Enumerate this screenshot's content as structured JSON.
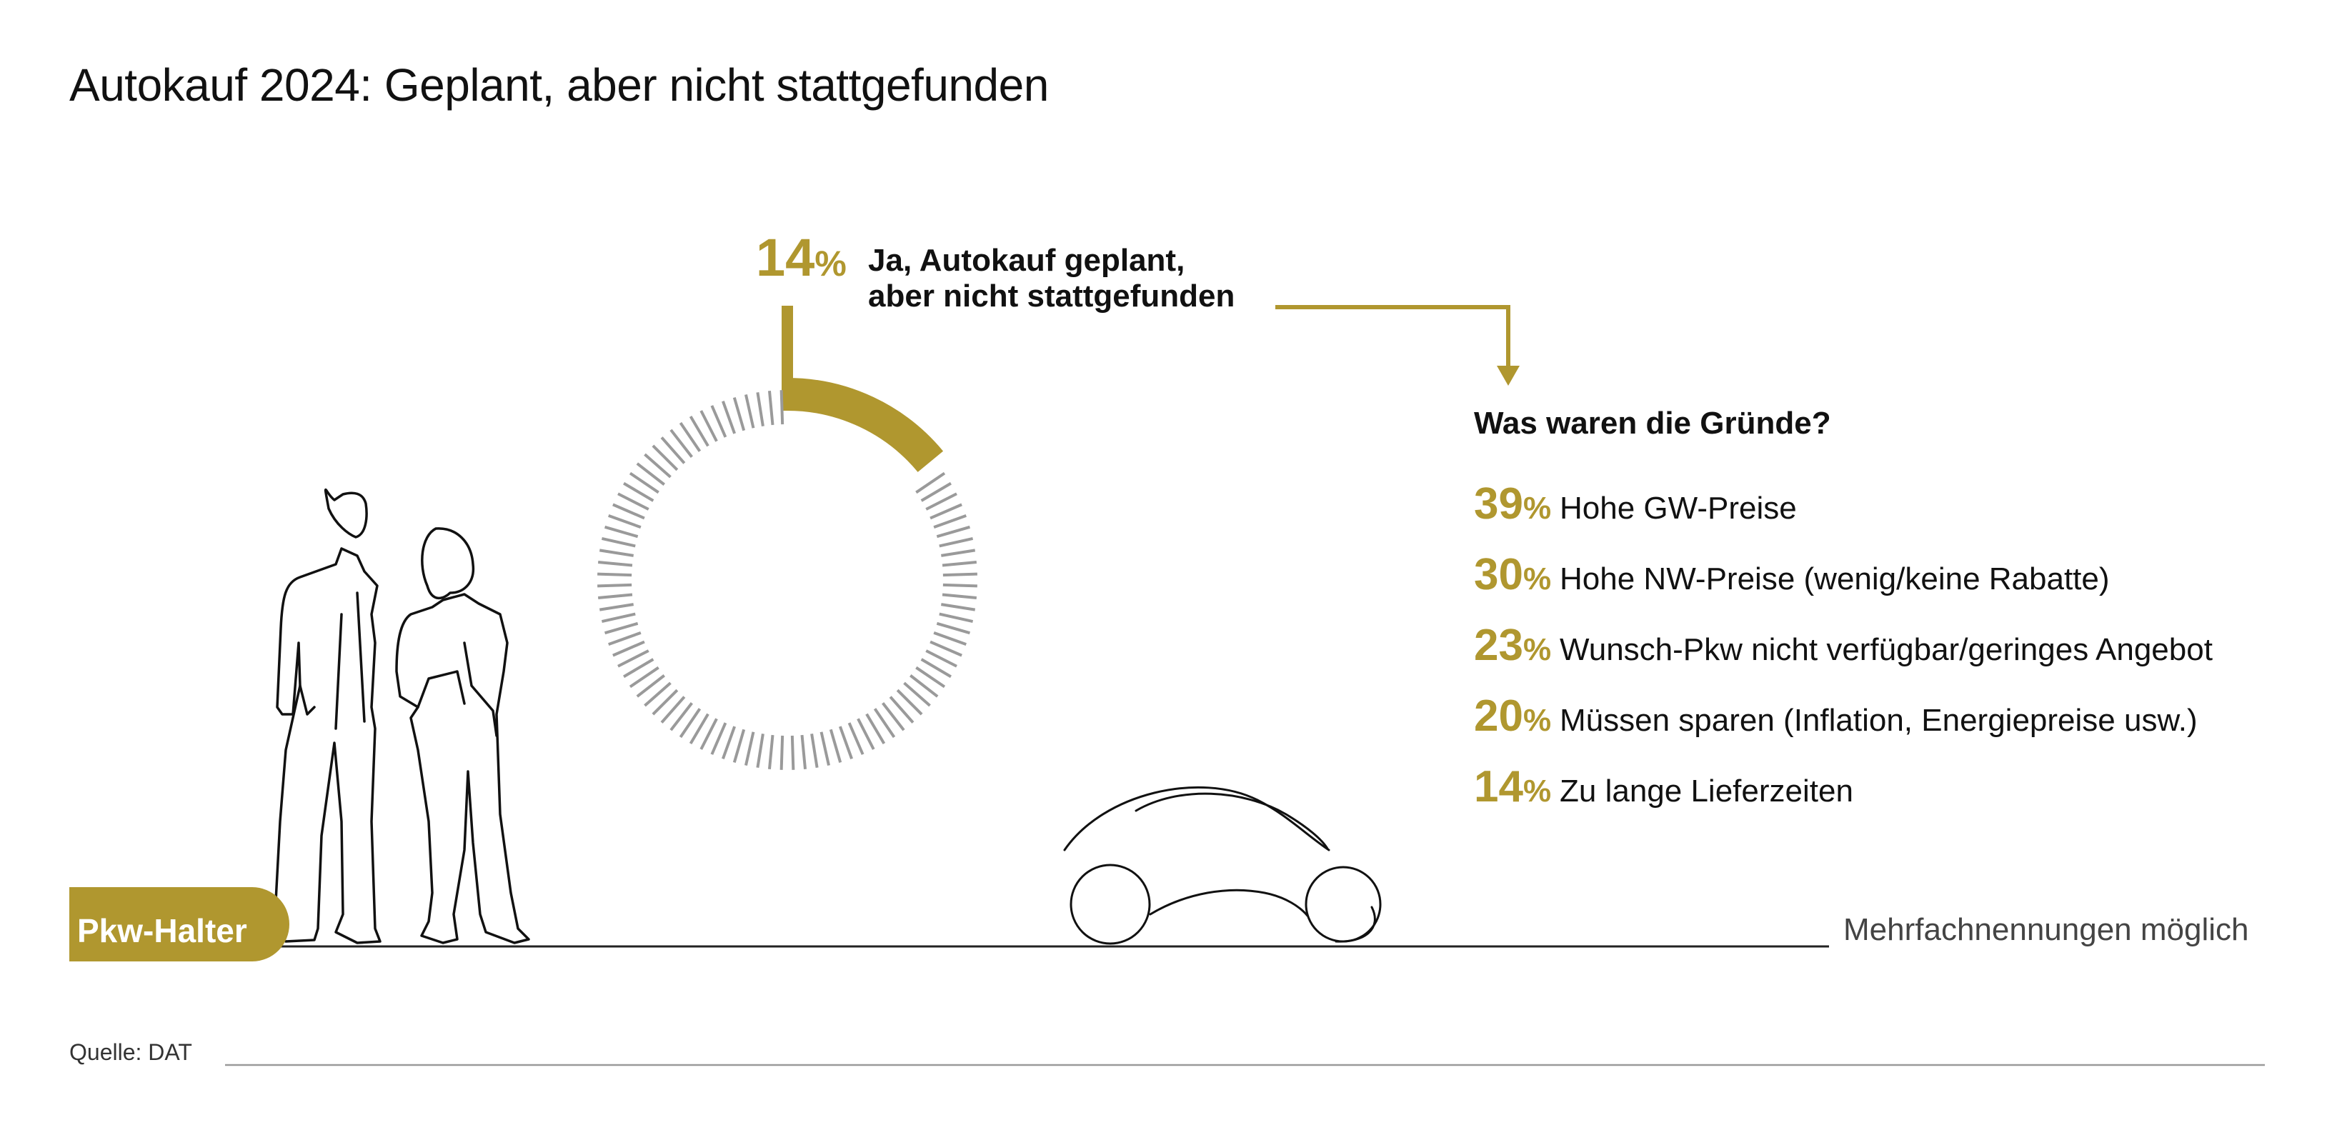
{
  "title": "Autokauf 2024: Geplant, aber nicht stattgefunden",
  "headline": {
    "value": "14",
    "unit": "%",
    "line1": "Ja, Autokauf geplant,",
    "line2": "aber nicht stattgefunden"
  },
  "reasons_title": "Was waren die Gründe?",
  "group_label": "Pkw-Halter",
  "note": "Mehrfachnennungen möglich",
  "source": "Quelle: DAT",
  "colors": {
    "accent": "#b0972f",
    "ink": "#111111",
    "ticks": "#9a9a9a"
  },
  "icons": [
    "people-silhouette-icon",
    "car-outline-icon",
    "arrow-down-icon"
  ],
  "chart_data": [
    {
      "type": "pie",
      "style": "radial-tick-gauge",
      "total": 100,
      "values": [
        14
      ],
      "labels": [
        "Ja, Autokauf geplant, aber nicht stattgefunden"
      ]
    },
    {
      "type": "table",
      "title": "Was waren die Gründe?",
      "unit": "%",
      "rows": [
        {
          "value": 39,
          "label": "Hohe GW-Preise"
        },
        {
          "value": 30,
          "label": "Hohe NW-Preise (wenig/keine Rabatte)"
        },
        {
          "value": 23,
          "label": "Wunsch-Pkw nicht verfügbar/geringes Angebot"
        },
        {
          "value": 20,
          "label": "Müssen sparen (Inflation, Energiepreise usw.)"
        },
        {
          "value": 14,
          "label": "Zu lange Lieferzeiten"
        }
      ]
    }
  ]
}
